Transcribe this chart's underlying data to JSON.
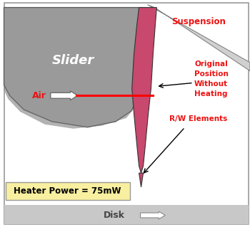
{
  "bg_color": "#ffffff",
  "border_color": "#999999",
  "slider_color": "#9a9a9a",
  "slider_bottom_color": "#787878",
  "pink_color": "#c8486e",
  "suspension_color": "#d0d0d0",
  "disk_color": "#c8c8c8",
  "yellow_box_color": "#f8f0a0",
  "slider_label": "Slider",
  "slider_label_color": "#ffffff",
  "suspension_label": "Suspension",
  "suspension_label_color": "#ee1111",
  "original_label": "Original\nPosition\nWithout\nHeating",
  "original_label_color": "#ee1111",
  "rw_label": "R/W Elements",
  "rw_label_color": "#ee1111",
  "air_label": "Air",
  "air_label_color": "#ee1111",
  "heater_label": "Heater Power = 75mW",
  "disk_label": "Disk",
  "disk_label_color": "#444444",
  "arrow_color": "#888888"
}
